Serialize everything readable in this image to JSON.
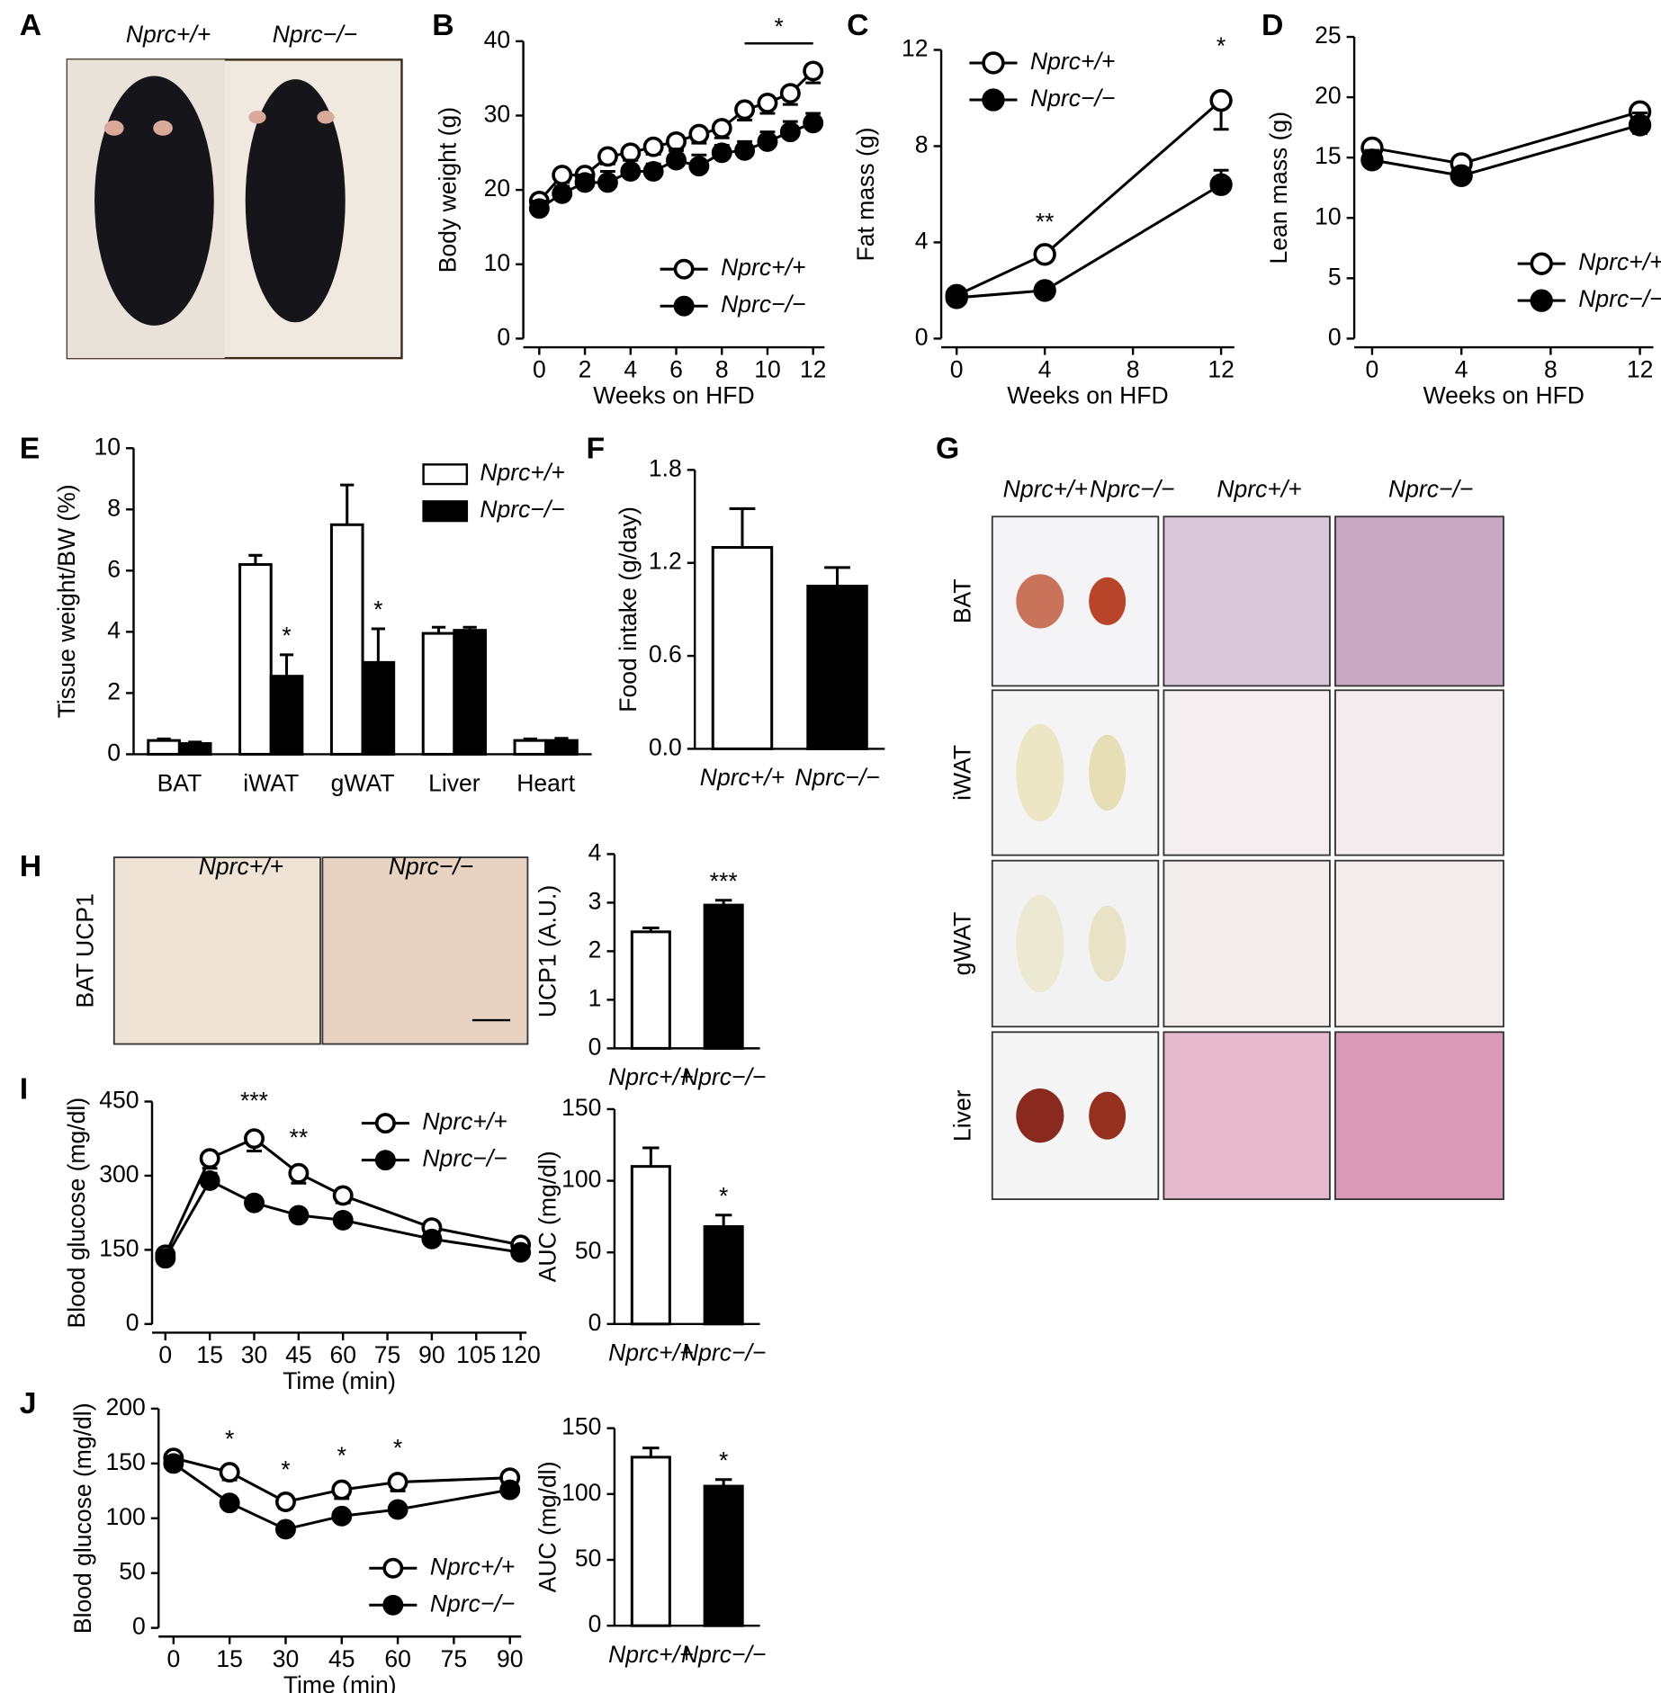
{
  "figure": {
    "letters": [
      "A",
      "B",
      "C",
      "D",
      "E",
      "F",
      "G",
      "H",
      "I",
      "J"
    ],
    "photo_a": {
      "labels": [
        "Nprc+/+",
        "Nprc−/−"
      ]
    },
    "photo_g": {
      "columns": [
        "Nprc+/+",
        "Nprc−/−",
        "Nprc+/+",
        "Nprc−/−"
      ],
      "rows": [
        "BAT",
        "iWAT",
        "gWAT",
        "Liver"
      ]
    },
    "photo_h": {
      "label": "BAT UCP1",
      "columns": [
        "Nprc+/+",
        "Nprc−/−"
      ]
    }
  },
  "chart_data": [
    {
      "type": "line",
      "xlabel": "Weeks on HFD",
      "ylabel": "Body weight (g)",
      "x": [
        0,
        1,
        2,
        3,
        4,
        5,
        6,
        7,
        8,
        9,
        10,
        11,
        12
      ],
      "xlim": [
        -0.7,
        12.5
      ],
      "xticks": [
        0,
        2,
        4,
        6,
        8,
        10,
        12
      ],
      "ylim": [
        0,
        40
      ],
      "yticks": [
        0,
        10,
        20,
        30,
        40
      ],
      "series": [
        {
          "name": "Nprc+/+",
          "color": "#000000",
          "marker_fill": "#ffffff",
          "values": [
            18.5,
            22,
            22,
            24.5,
            25,
            25.8,
            26.5,
            27.5,
            28.3,
            30.8,
            31.7,
            33,
            36
          ],
          "errors": [
            1,
            1,
            1,
            1,
            1,
            1,
            1.2,
            1.2,
            1.3,
            1.4,
            1.4,
            1.5,
            1.6
          ]
        },
        {
          "name": "Nprc−/−",
          "color": "#000000",
          "marker_fill": "#000000",
          "values": [
            17.5,
            19.5,
            21,
            21,
            22.5,
            22.5,
            24,
            23.2,
            25,
            25.3,
            26.5,
            27.8,
            29
          ],
          "errors": [
            1,
            1,
            1,
            1.5,
            1.5,
            1,
            1.5,
            1.5,
            1,
            1.2,
            1.3,
            1.4,
            1.3
          ]
        }
      ],
      "annotations": [
        {
          "text": "*",
          "x": [
            9,
            12
          ]
        }
      ]
    },
    {
      "type": "line",
      "xlabel": "Weeks on HFD",
      "ylabel": "Fat mass (g)",
      "x": [
        0,
        4,
        12
      ],
      "xlim": [
        -0.7,
        12.6
      ],
      "xticks": [
        0,
        4,
        8,
        12
      ],
      "ylim": [
        0,
        12
      ],
      "yticks": [
        0,
        4,
        8,
        12
      ],
      "series": [
        {
          "name": "Nprc+/+",
          "color": "#000000",
          "marker_fill": "#ffffff",
          "values": [
            1.8,
            3.5,
            9.9
          ],
          "errors": [
            0.2,
            0.3,
            1.2
          ]
        },
        {
          "name": "Nprc−/−",
          "color": "#000000",
          "marker_fill": "#000000",
          "values": [
            1.7,
            2.0,
            6.4
          ],
          "errors": [
            0.2,
            0.2,
            0.6
          ]
        }
      ],
      "annotations": [
        {
          "text": "**",
          "x": 4
        },
        {
          "text": "*",
          "x": 12
        }
      ]
    },
    {
      "type": "line",
      "xlabel": "Weeks on HFD",
      "ylabel": "Lean mass (g)",
      "x": [
        0,
        4,
        12
      ],
      "xlim": [
        -0.8,
        12.6
      ],
      "xticks": [
        0,
        4,
        8,
        12
      ],
      "ylim": [
        0,
        25
      ],
      "yticks": [
        0,
        5,
        10,
        15,
        20,
        25
      ],
      "series": [
        {
          "name": "Nprc+/+",
          "color": "#000000",
          "marker_fill": "#ffffff",
          "values": [
            15.8,
            14.5,
            18.8
          ],
          "errors": [
            1,
            0.5,
            1.8
          ]
        },
        {
          "name": "Nprc−/−",
          "color": "#000000",
          "marker_fill": "#000000",
          "values": [
            14.8,
            13.5,
            17.7
          ],
          "errors": [
            0.8,
            0.6,
            1
          ]
        }
      ]
    },
    {
      "type": "bar",
      "ylabel": "Tissue weight/BW (%)",
      "categories": [
        "BAT",
        "iWAT",
        "gWAT",
        "Liver",
        "Heart"
      ],
      "ylim": [
        0,
        10
      ],
      "yticks": [
        0,
        2,
        4,
        6,
        8,
        10
      ],
      "series": [
        {
          "name": "Nprc+/+",
          "color": "#ffffff",
          "values": [
            0.45,
            6.2,
            7.5,
            3.95,
            0.45
          ],
          "errors": [
            0.05,
            0.3,
            1.3,
            0.2,
            0.05
          ]
        },
        {
          "name": "Nprc−/−",
          "color": "#000000",
          "values": [
            0.35,
            2.55,
            3.0,
            4.05,
            0.45
          ],
          "errors": [
            0.05,
            0.7,
            1.1,
            0.1,
            0.07
          ]
        }
      ],
      "annotations": [
        {
          "text": "*",
          "category": 1,
          "series": 1
        },
        {
          "text": "*",
          "category": 2,
          "series": 1
        }
      ]
    },
    {
      "type": "bar",
      "ylabel": "Food intake (g/day)",
      "categories": [
        "Nprc+/+",
        "Nprc−/−"
      ],
      "ylim": [
        0,
        1.8
      ],
      "yticks": [
        {
          "value": 0,
          "label": "0.0"
        },
        0.6,
        1.2,
        1.8
      ],
      "series": [
        {
          "colors": [
            "#ffffff",
            "#000000"
          ],
          "values": [
            1.3,
            1.05
          ],
          "errors": [
            0.25,
            0.12
          ]
        }
      ]
    },
    {
      "type": "bar",
      "ylabel": "UCP1 (A.U.)",
      "categories": [
        "Nprc+/+",
        "Nprc−/−"
      ],
      "ylim": [
        0,
        4
      ],
      "yticks": [
        0,
        1,
        2,
        3,
        4
      ],
      "series": [
        {
          "colors": [
            "#ffffff",
            "#000000"
          ],
          "values": [
            2.4,
            2.95
          ],
          "errors": [
            0.08,
            0.1
          ]
        }
      ],
      "annotations": [
        {
          "text": "***",
          "category": 1,
          "series": 0
        }
      ]
    },
    {
      "type": "line",
      "xlabel": "Time (min)",
      "ylabel": "Blood glucose (mg/dl)",
      "x": [
        0,
        15,
        30,
        45,
        60,
        90,
        120
      ],
      "xlim": [
        -4.5,
        122
      ],
      "xticks": [
        0,
        15,
        30,
        45,
        60,
        75,
        90,
        105,
        120
      ],
      "ylim": [
        0,
        450
      ],
      "yticks": [
        0,
        150,
        300,
        450
      ],
      "series": [
        {
          "name": "Nprc+/+",
          "color": "#000000",
          "marker_fill": "#ffffff",
          "values": [
            140,
            335,
            375,
            305,
            260,
            195,
            160
          ],
          "errors": [
            10,
            20,
            25,
            20,
            15,
            12,
            8
          ]
        },
        {
          "name": "Nprc−/−",
          "color": "#000000",
          "marker_fill": "#000000",
          "values": [
            133,
            290,
            245,
            220,
            210,
            172,
            145
          ],
          "errors": [
            8,
            15,
            12,
            8,
            10,
            8,
            8
          ]
        }
      ],
      "annotations": [
        {
          "text": "***",
          "x": 30
        },
        {
          "text": "**",
          "x": 45
        }
      ]
    },
    {
      "type": "bar",
      "ylabel": "AUC (mg/dl)",
      "categories": [
        "Nprc+/+",
        "Nprc−/−"
      ],
      "ylim": [
        0,
        150
      ],
      "yticks": [
        0,
        50,
        100,
        150
      ],
      "series": [
        {
          "colors": [
            "#ffffff",
            "#000000"
          ],
          "values": [
            110,
            68
          ],
          "errors": [
            13,
            8
          ]
        }
      ],
      "annotations": [
        {
          "text": "*",
          "category": 1,
          "series": 0
        }
      ]
    },
    {
      "type": "line",
      "xlabel": "Time (min)",
      "ylabel": "Blood glucose (mg/dl)",
      "x": [
        0,
        15,
        30,
        45,
        60,
        90
      ],
      "xlim": [
        -4,
        93
      ],
      "xticks": [
        0,
        15,
        30,
        45,
        60,
        75,
        90
      ],
      "ylim": [
        0,
        200
      ],
      "yticks": [
        0,
        50,
        100,
        150,
        200
      ],
      "series": [
        {
          "name": "Nprc+/+",
          "color": "#000000",
          "marker_fill": "#ffffff",
          "values": [
            155,
            142,
            115,
            126,
            133,
            137
          ],
          "errors": [
            3,
            7,
            6,
            8,
            8,
            7
          ]
        },
        {
          "name": "Nprc−/−",
          "color": "#000000",
          "marker_fill": "#000000",
          "values": [
            150,
            114,
            90,
            102,
            108,
            126
          ],
          "errors": [
            3,
            3,
            3,
            3,
            3,
            4
          ]
        }
      ],
      "annotations": [
        {
          "text": "*",
          "x": 15
        },
        {
          "text": "*",
          "x": 30
        },
        {
          "text": "*",
          "x": 45
        },
        {
          "text": "*",
          "x": 60
        }
      ]
    },
    {
      "type": "bar",
      "ylabel": "AUC (mg/dl)",
      "categories": [
        "Nprc+/+",
        "Nprc−/−"
      ],
      "ylim": [
        0,
        150
      ],
      "yticks": [
        0,
        50,
        100,
        150
      ],
      "series": [
        {
          "colors": [
            "#ffffff",
            "#000000"
          ],
          "values": [
            128,
            106
          ],
          "errors": [
            7,
            5
          ]
        }
      ],
      "annotations": [
        {
          "text": "*",
          "category": 1,
          "series": 0
        }
      ]
    }
  ]
}
